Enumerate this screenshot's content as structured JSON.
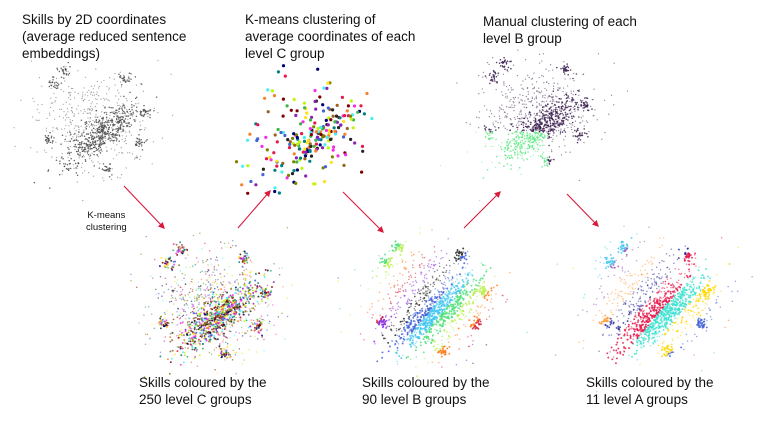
{
  "panels": {
    "skills_2d": {
      "caption": "Skills by 2D coordinates\n(average reduced sentence\nembeddings)"
    },
    "kmeans_c": {
      "caption": "K-means clustering of\naverage coordinates of each\nlevel C group"
    },
    "manual_b": {
      "caption": "Manual clustering of each\nlevel B group"
    },
    "level_c": {
      "caption": "Skills coloured by the\n250 level C groups"
    },
    "level_b": {
      "caption": "Skills coloured by the\n90 level B groups"
    },
    "level_a": {
      "caption": "Skills coloured by the\n11 level A groups"
    }
  },
  "step_label": "K-means\nclustering",
  "colors": {
    "scatter_gray": "#4a4a4a",
    "arrow": "#d81b3c",
    "manual_dark": "#3a1f4d",
    "manual_green": "#5ee882",
    "palette_many": [
      "#e6194b",
      "#3cb44b",
      "#ffe119",
      "#4363d8",
      "#f58231",
      "#911eb4",
      "#46f0f0",
      "#f032e6",
      "#bcf60c",
      "#008080",
      "#9a6324",
      "#800000",
      "#808000",
      "#000075",
      "#222222"
    ],
    "palette_b": [
      "#3f5fd6",
      "#46c8f0",
      "#4fe07a",
      "#b7f04a",
      "#ff7a1a",
      "#d7263d",
      "#8a2be2",
      "#222222"
    ],
    "palette_a": [
      "#3f5fd6",
      "#ff6a1a",
      "#58e26a",
      "#b7f04a",
      "#46c8f0",
      "#9b59b6",
      "#ff9f40",
      "#2f2f9e",
      "#e6194b",
      "#40e0d0",
      "#ffd700"
    ]
  }
}
